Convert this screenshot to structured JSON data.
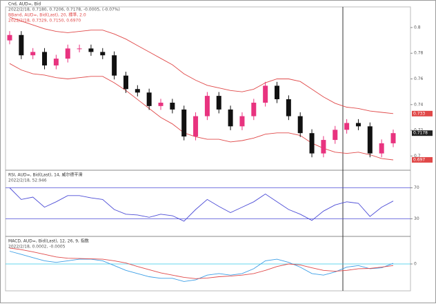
{
  "chart_data": [
    {
      "type": "candlestick",
      "title": "Cnd, AUD=, Bid",
      "subtitle": "2022/2/18, 0.7180, 0.7206, 0.7178, -0.0005, (-0.07%)",
      "band_title": "BBand, AUD=, Bid(Last), 20, 標準, 2.0",
      "band_subtitle": "2022/2/18, 0.7329, 0.7150, 0.6970",
      "up_color": "#e8337f",
      "down_color": "#111111",
      "band_color": "#e04848",
      "open": [
        0.79,
        0.7942,
        0.7784,
        0.781,
        0.7705,
        0.7758,
        0.7837,
        0.7837,
        0.781,
        0.7784,
        0.7626,
        0.7521,
        0.7494,
        0.7389,
        0.7415,
        0.7362,
        0.7152,
        0.731,
        0.7468,
        0.7362,
        0.7231,
        0.731,
        0.7415,
        0.7547,
        0.7442,
        0.731,
        0.7178,
        0.702,
        0.7125,
        0.7204,
        0.7257,
        0.7231,
        0.702,
        0.7099
      ],
      "high": [
        0.7972,
        0.7972,
        0.784,
        0.784,
        0.7788,
        0.7867,
        0.7867,
        0.7867,
        0.784,
        0.7814,
        0.7656,
        0.7551,
        0.7524,
        0.7445,
        0.7445,
        0.7392,
        0.734,
        0.7498,
        0.7498,
        0.7392,
        0.734,
        0.7445,
        0.7577,
        0.7577,
        0.7472,
        0.734,
        0.7208,
        0.7155,
        0.7234,
        0.7287,
        0.7287,
        0.7261,
        0.7129,
        0.7206
      ],
      "low": [
        0.787,
        0.7754,
        0.7754,
        0.7675,
        0.7675,
        0.7728,
        0.7807,
        0.778,
        0.7754,
        0.7596,
        0.7491,
        0.7464,
        0.7359,
        0.7359,
        0.7332,
        0.7122,
        0.7122,
        0.728,
        0.7332,
        0.7201,
        0.7201,
        0.728,
        0.7385,
        0.7412,
        0.728,
        0.7148,
        0.699,
        0.699,
        0.7095,
        0.7174,
        0.7201,
        0.699,
        0.699,
        0.7069
      ],
      "close": [
        0.7942,
        0.7784,
        0.781,
        0.7705,
        0.7758,
        0.7837,
        0.7837,
        0.781,
        0.7784,
        0.7626,
        0.7521,
        0.7494,
        0.7389,
        0.7415,
        0.7362,
        0.7152,
        0.731,
        0.7468,
        0.7362,
        0.7231,
        0.731,
        0.7415,
        0.7547,
        0.7442,
        0.731,
        0.7178,
        0.702,
        0.7125,
        0.7204,
        0.7257,
        0.7231,
        0.702,
        0.7099,
        0.7178
      ],
      "band_upper": [
        0.808,
        0.805,
        0.802,
        0.799,
        0.797,
        0.796,
        0.797,
        0.798,
        0.798,
        0.795,
        0.791,
        0.786,
        0.781,
        0.776,
        0.771,
        0.764,
        0.759,
        0.755,
        0.753,
        0.751,
        0.75,
        0.752,
        0.757,
        0.76,
        0.76,
        0.758,
        0.752,
        0.746,
        0.741,
        0.738,
        0.737,
        0.735,
        0.734,
        0.733
      ],
      "band_lower": [
        0.772,
        0.767,
        0.764,
        0.763,
        0.761,
        0.76,
        0.761,
        0.762,
        0.762,
        0.757,
        0.751,
        0.744,
        0.737,
        0.73,
        0.725,
        0.718,
        0.715,
        0.713,
        0.713,
        0.711,
        0.712,
        0.714,
        0.717,
        0.718,
        0.718,
        0.716,
        0.71,
        0.706,
        0.703,
        0.702,
        0.703,
        0.701,
        0.698,
        0.697
      ],
      "ylim": [
        0.69,
        0.815
      ],
      "yticks": [
        0.7,
        0.72,
        0.74,
        0.76,
        0.78,
        0.8
      ],
      "grid": false
    },
    {
      "type": "line",
      "title": "RSI, AUD=, Bid(Last), 14, 威尔德平滑",
      "subtitle": "2022/2/18, 52.946",
      "series": [
        {
          "color": "#4b4bd6",
          "values": [
            70,
            55,
            58,
            45,
            52,
            60,
            60,
            57,
            55,
            42,
            36,
            35,
            32,
            36,
            34,
            27,
            42,
            55,
            46,
            38,
            45,
            52,
            62,
            52,
            42,
            36,
            28,
            40,
            48,
            52,
            50,
            33,
            45,
            52.946
          ]
        }
      ],
      "ylim": [
        10,
        90
      ],
      "yticks": [
        30,
        70
      ],
      "grid": true,
      "grid_color": "#4b4bd6"
    },
    {
      "type": "line",
      "title": "MACD, AUD=, Bid(Last), 12, 26, 9, 指数",
      "subtitle": "2022/2/18, 0.0002, -0.0005",
      "series": [
        {
          "color": "#3a9ee6",
          "values": [
            0.004,
            0.003,
            0.002,
            0.001,
            0.0005,
            0.001,
            0.0015,
            0.0015,
            0.001,
            -0.0005,
            -0.002,
            -0.003,
            -0.004,
            -0.0045,
            -0.0045,
            -0.0055,
            -0.005,
            -0.0035,
            -0.003,
            -0.0035,
            -0.003,
            -0.0015,
            0.001,
            0.0015,
            0.0005,
            -0.001,
            -0.003,
            -0.0035,
            -0.0025,
            -0.001,
            -0.0005,
            -0.0015,
            -0.0012,
            0.0002
          ]
        },
        {
          "color": "#e04848",
          "values": [
            0.005,
            0.0045,
            0.0038,
            0.003,
            0.0022,
            0.0018,
            0.0017,
            0.0016,
            0.0015,
            0.001,
            0.0003,
            -0.0008,
            -0.0018,
            -0.0028,
            -0.0035,
            -0.0042,
            -0.0046,
            -0.0044,
            -0.004,
            -0.0038,
            -0.0035,
            -0.003,
            -0.002,
            -0.0008,
            0,
            -0.0003,
            -0.0012,
            -0.002,
            -0.0023,
            -0.002,
            -0.0015,
            -0.0014,
            -0.001,
            -0.0005
          ]
        }
      ],
      "ylim": [
        -0.008,
        0.008
      ],
      "yticks": [
        0
      ],
      "grid": true,
      "grid_color": "#33c6e6"
    }
  ]
}
